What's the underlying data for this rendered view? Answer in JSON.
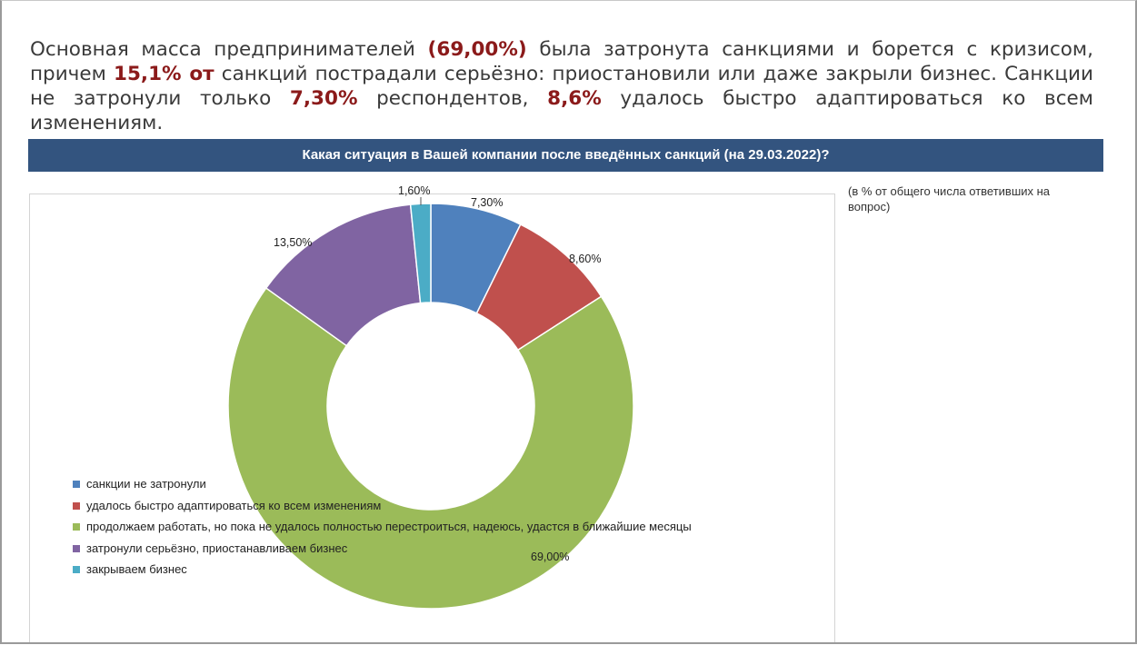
{
  "intro": {
    "p1": "Основная масса предпринимателей ",
    "h1": "(69,00%)",
    "p2": " была затронута санкциями и борется с кризисом, причем ",
    "h2": "15,1% от",
    "p3": " санкций пострадали серьёзно:  приостановили или даже закрыли бизнес.  Санкции не затронули только ",
    "h3": "7,30%",
    "p4": " респондентов, ",
    "h4": "8,6%",
    "p5": " удалось быстро адаптироваться ко всем изменениям."
  },
  "colors": {
    "title_bar": "#33547f",
    "highlight": "#8b1a1a"
  },
  "chart_data": {
    "type": "pie",
    "variant": "donut",
    "title": "Какая ситуация в Вашей компании после введённых санкций (на 29.03.2022)?",
    "note": "(в % от  общего числа ответивших на вопрос)",
    "legend_position": "left",
    "series": [
      {
        "name": "санкции не затронули",
        "value": 7.3,
        "label": "7,30%",
        "color": "#4f81bd"
      },
      {
        "name": "удалось быстро адаптироваться ко всем изменениям",
        "value": 8.6,
        "label": "8,60%",
        "color": "#c0504d"
      },
      {
        "name": "продолжаем работать, но пока  не удалось полностью перестроиться, надеюсь, удастся в ближайшие месяцы",
        "value": 69.0,
        "label": "69,00%",
        "color": "#9bbb59"
      },
      {
        "name": "затронули серьёзно, приостанавливаем бизнес",
        "value": 13.5,
        "label": "13,50%",
        "color": "#8064a2"
      },
      {
        "name": "закрываем бизнес",
        "value": 1.6,
        "label": "1,60%",
        "color": "#4bacc6"
      }
    ]
  }
}
